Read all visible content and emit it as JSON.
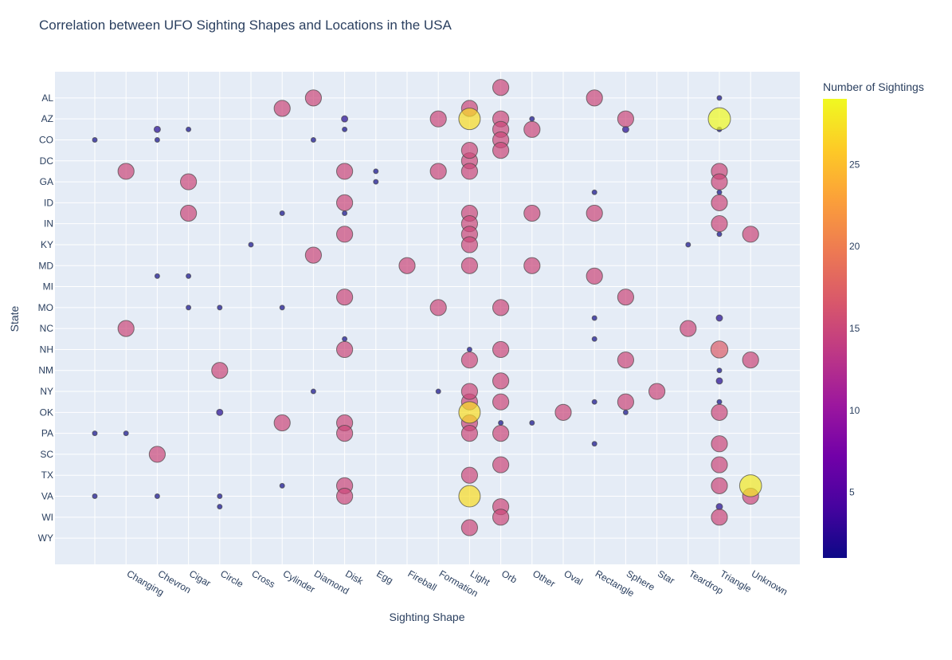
{
  "chart_data": {
    "type": "scatter",
    "title": "Correlation between UFO Sighting Shapes and Locations in the USA",
    "xlabel": "Sighting Shape",
    "ylabel": "State",
    "colorbar_title": "Number of Sightings",
    "colorbar_range": [
      1,
      29
    ],
    "colorbar_ticks": [
      5,
      10,
      15,
      20,
      25
    ],
    "colorscale": [
      "#0d0887",
      "#46039f",
      "#7201a8",
      "#9c179e",
      "#bd3786",
      "#d8576b",
      "#ed7953",
      "#fb9f3a",
      "#fdca26",
      "#f0f921"
    ],
    "x_categories": [
      "",
      "Changing",
      "Chevron",
      "Cigar",
      "Circle",
      "Cross",
      "Cylinder",
      "Diamond",
      "Disk",
      "Egg",
      "Fireball",
      "Formation",
      "Light",
      "Orb",
      "Other",
      "Oval",
      "Rectangle",
      "Sphere",
      "Star",
      "Teardrop",
      "Triangle",
      "Unknown"
    ],
    "y_tick_labels": [
      "AL",
      "AZ",
      "CO",
      "DC",
      "GA",
      "ID",
      "IN",
      "KY",
      "MD",
      "MI",
      "MO",
      "NC",
      "NH",
      "NM",
      "NY",
      "OK",
      "PA",
      "SC",
      "TX",
      "VA",
      "WI",
      "WY"
    ],
    "y_rows": [
      "",
      "AL",
      "",
      "AZ",
      "",
      "CO",
      "",
      "DC",
      "",
      "GA",
      "",
      "ID",
      "",
      "IN",
      "",
      "KY",
      "",
      "MD",
      "",
      "MI",
      "",
      "MO",
      "",
      "NC",
      "",
      "NH",
      "",
      "NM",
      "",
      "NY",
      "",
      "OK",
      "",
      "PA",
      "",
      "SC",
      "",
      "TX",
      "",
      "VA",
      "",
      "WI",
      "",
      "WY"
    ],
    "y_range": [
      -1.5,
      45.5
    ],
    "legend": "colorbar-right",
    "grid": true,
    "points": [
      {
        "x": 0,
        "y": 5,
        "v": 1
      },
      {
        "x": 0,
        "y": 33,
        "v": 1
      },
      {
        "x": 0,
        "y": 39,
        "v": 1
      },
      {
        "x": 1,
        "y": 8,
        "v": 15
      },
      {
        "x": 1,
        "y": 23,
        "v": 15
      },
      {
        "x": 1,
        "y": 33,
        "v": 1
      },
      {
        "x": 2,
        "y": 4,
        "v": 2
      },
      {
        "x": 2,
        "y": 5,
        "v": 1
      },
      {
        "x": 2,
        "y": 18,
        "v": 1
      },
      {
        "x": 2,
        "y": 35,
        "v": 15
      },
      {
        "x": 2,
        "y": 39,
        "v": 1
      },
      {
        "x": 3,
        "y": 4,
        "v": 1
      },
      {
        "x": 3,
        "y": 9,
        "v": 15
      },
      {
        "x": 3,
        "y": 12,
        "v": 15
      },
      {
        "x": 3,
        "y": 18,
        "v": 1
      },
      {
        "x": 3,
        "y": 21,
        "v": 1
      },
      {
        "x": 4,
        "y": 21,
        "v": 1
      },
      {
        "x": 4,
        "y": 27,
        "v": 15
      },
      {
        "x": 4,
        "y": 31,
        "v": 2
      },
      {
        "x": 4,
        "y": 39,
        "v": 1
      },
      {
        "x": 4,
        "y": 40,
        "v": 1
      },
      {
        "x": 5,
        "y": 15,
        "v": 1
      },
      {
        "x": 6,
        "y": 2,
        "v": 15
      },
      {
        "x": 6,
        "y": 12,
        "v": 1
      },
      {
        "x": 6,
        "y": 21,
        "v": 1
      },
      {
        "x": 6,
        "y": 32,
        "v": 15
      },
      {
        "x": 6,
        "y": 38,
        "v": 1
      },
      {
        "x": 7,
        "y": 1,
        "v": 15
      },
      {
        "x": 7,
        "y": 5,
        "v": 1
      },
      {
        "x": 7,
        "y": 16,
        "v": 15
      },
      {
        "x": 7,
        "y": 29,
        "v": 1
      },
      {
        "x": 8,
        "y": 3,
        "v": 2
      },
      {
        "x": 8,
        "y": 4,
        "v": 1
      },
      {
        "x": 8,
        "y": 8,
        "v": 15
      },
      {
        "x": 8,
        "y": 11,
        "v": 15
      },
      {
        "x": 8,
        "y": 12,
        "v": 1
      },
      {
        "x": 8,
        "y": 14,
        "v": 15
      },
      {
        "x": 8,
        "y": 20,
        "v": 15
      },
      {
        "x": 8,
        "y": 24,
        "v": 1
      },
      {
        "x": 8,
        "y": 25,
        "v": 15
      },
      {
        "x": 8,
        "y": 32,
        "v": 15
      },
      {
        "x": 8,
        "y": 33,
        "v": 15
      },
      {
        "x": 8,
        "y": 38,
        "v": 15
      },
      {
        "x": 8,
        "y": 39,
        "v": 15
      },
      {
        "x": 9,
        "y": 8,
        "v": 1
      },
      {
        "x": 9,
        "y": 9,
        "v": 1
      },
      {
        "x": 10,
        "y": 17,
        "v": 15
      },
      {
        "x": 11,
        "y": 3,
        "v": 15
      },
      {
        "x": 11,
        "y": 8,
        "v": 15
      },
      {
        "x": 11,
        "y": 21,
        "v": 15
      },
      {
        "x": 11,
        "y": 29,
        "v": 1
      },
      {
        "x": 12,
        "y": 2,
        "v": 15
      },
      {
        "x": 12,
        "y": 3,
        "v": 27
      },
      {
        "x": 12,
        "y": 7,
        "v": 15
      },
      {
        "x": 12,
        "y": 8,
        "v": 15
      },
      {
        "x": 12,
        "y": 6,
        "v": 15
      },
      {
        "x": 12,
        "y": 12,
        "v": 15
      },
      {
        "x": 12,
        "y": 13,
        "v": 15
      },
      {
        "x": 12,
        "y": 14,
        "v": 15
      },
      {
        "x": 12,
        "y": 15,
        "v": 15
      },
      {
        "x": 12,
        "y": 17,
        "v": 15
      },
      {
        "x": 12,
        "y": 25,
        "v": 1
      },
      {
        "x": 12,
        "y": 26,
        "v": 15
      },
      {
        "x": 12,
        "y": 30,
        "v": 15
      },
      {
        "x": 12,
        "y": 31,
        "v": 27
      },
      {
        "x": 12,
        "y": 32,
        "v": 15
      },
      {
        "x": 12,
        "y": 33,
        "v": 15
      },
      {
        "x": 12,
        "y": 29,
        "v": 15
      },
      {
        "x": 12,
        "y": 37,
        "v": 15
      },
      {
        "x": 12,
        "y": 39,
        "v": 27
      },
      {
        "x": 12,
        "y": 42,
        "v": 15
      },
      {
        "x": 13,
        "y": 0,
        "v": 15
      },
      {
        "x": 13,
        "y": 3,
        "v": 15
      },
      {
        "x": 13,
        "y": 4,
        "v": 15
      },
      {
        "x": 13,
        "y": 5,
        "v": 15
      },
      {
        "x": 13,
        "y": 6,
        "v": 15
      },
      {
        "x": 13,
        "y": 21,
        "v": 15
      },
      {
        "x": 13,
        "y": 25,
        "v": 15
      },
      {
        "x": 13,
        "y": 28,
        "v": 15
      },
      {
        "x": 13,
        "y": 30,
        "v": 15
      },
      {
        "x": 13,
        "y": 32,
        "v": 1
      },
      {
        "x": 13,
        "y": 33,
        "v": 15
      },
      {
        "x": 13,
        "y": 36,
        "v": 15
      },
      {
        "x": 13,
        "y": 40,
        "v": 15
      },
      {
        "x": 13,
        "y": 41,
        "v": 15
      },
      {
        "x": 14,
        "y": 3,
        "v": 1
      },
      {
        "x": 14,
        "y": 4,
        "v": 15
      },
      {
        "x": 14,
        "y": 12,
        "v": 15
      },
      {
        "x": 14,
        "y": 17,
        "v": 15
      },
      {
        "x": 14,
        "y": 32,
        "v": 1
      },
      {
        "x": 15,
        "y": 31,
        "v": 15
      },
      {
        "x": 16,
        "y": 1,
        "v": 15
      },
      {
        "x": 16,
        "y": 10,
        "v": 1
      },
      {
        "x": 16,
        "y": 12,
        "v": 15
      },
      {
        "x": 16,
        "y": 18,
        "v": 15
      },
      {
        "x": 16,
        "y": 22,
        "v": 1
      },
      {
        "x": 16,
        "y": 24,
        "v": 1
      },
      {
        "x": 16,
        "y": 30,
        "v": 1
      },
      {
        "x": 16,
        "y": 34,
        "v": 1
      },
      {
        "x": 17,
        "y": 3,
        "v": 15
      },
      {
        "x": 17,
        "y": 4,
        "v": 2
      },
      {
        "x": 17,
        "y": 20,
        "v": 15
      },
      {
        "x": 17,
        "y": 26,
        "v": 15
      },
      {
        "x": 17,
        "y": 30,
        "v": 15
      },
      {
        "x": 17,
        "y": 31,
        "v": 1
      },
      {
        "x": 18,
        "y": 29,
        "v": 15
      },
      {
        "x": 19,
        "y": 15,
        "v": 1
      },
      {
        "x": 19,
        "y": 23,
        "v": 15
      },
      {
        "x": 20,
        "y": 1,
        "v": 1
      },
      {
        "x": 20,
        "y": 3,
        "v": 29
      },
      {
        "x": 20,
        "y": 4,
        "v": 1
      },
      {
        "x": 20,
        "y": 8,
        "v": 15
      },
      {
        "x": 20,
        "y": 9,
        "v": 15
      },
      {
        "x": 20,
        "y": 10,
        "v": 1
      },
      {
        "x": 20,
        "y": 11,
        "v": 15
      },
      {
        "x": 20,
        "y": 13,
        "v": 15
      },
      {
        "x": 20,
        "y": 14,
        "v": 1
      },
      {
        "x": 20,
        "y": 22,
        "v": 2
      },
      {
        "x": 20,
        "y": 25,
        "v": 17
      },
      {
        "x": 20,
        "y": 27,
        "v": 1
      },
      {
        "x": 20,
        "y": 28,
        "v": 2
      },
      {
        "x": 20,
        "y": 30,
        "v": 1
      },
      {
        "x": 20,
        "y": 31,
        "v": 15
      },
      {
        "x": 20,
        "y": 34,
        "v": 15
      },
      {
        "x": 20,
        "y": 36,
        "v": 15
      },
      {
        "x": 20,
        "y": 38,
        "v": 15
      },
      {
        "x": 20,
        "y": 40,
        "v": 2
      },
      {
        "x": 20,
        "y": 41,
        "v": 15
      },
      {
        "x": 21,
        "y": 14,
        "v": 15
      },
      {
        "x": 21,
        "y": 26,
        "v": 15
      },
      {
        "x": 21,
        "y": 38,
        "v": 28
      },
      {
        "x": 21,
        "y": 39,
        "v": 15
      }
    ]
  }
}
